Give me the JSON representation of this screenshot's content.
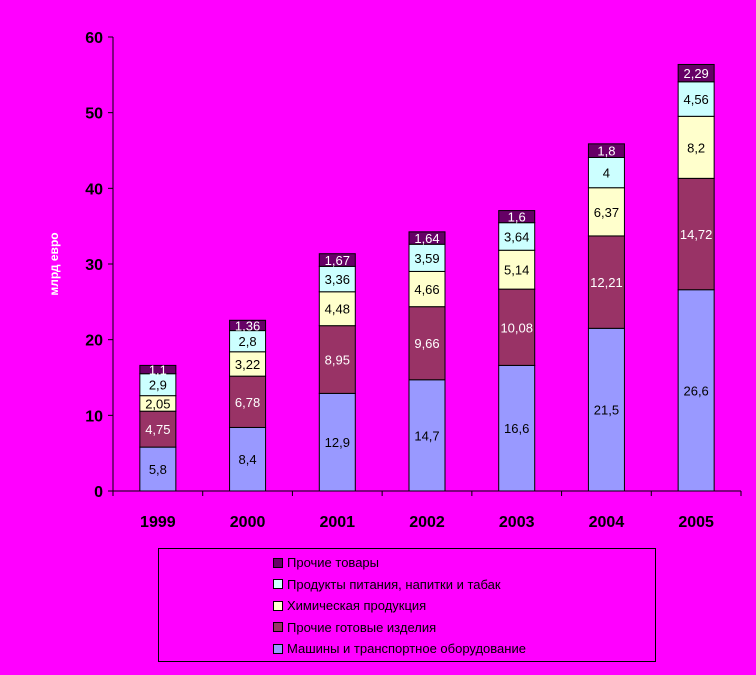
{
  "chart_data": {
    "type": "bar",
    "stacked": true,
    "ylabel": "млрд евро",
    "ylim": [
      0,
      60
    ],
    "yticks": [
      0,
      10,
      20,
      30,
      40,
      50,
      60
    ],
    "categories": [
      "1999",
      "2000",
      "2001",
      "2002",
      "2003",
      "2004",
      "2005"
    ],
    "series": [
      {
        "name": "Машины и транспортное оборудование",
        "color": "#9999ff",
        "values": [
          5.8,
          8.4,
          12.9,
          14.7,
          16.6,
          21.5,
          26.6
        ],
        "labels": [
          "5,8",
          "8,4",
          "12,9",
          "14,7",
          "16,6",
          "21,5",
          "26,6"
        ]
      },
      {
        "name": "Прочие готовые изделия",
        "color": "#993366",
        "values": [
          4.75,
          6.78,
          8.95,
          9.66,
          10.08,
          12.21,
          14.72
        ],
        "labels": [
          "4,75",
          "6,78",
          "8,95",
          "9,66",
          "10,08",
          "12,21",
          "14,72"
        ]
      },
      {
        "name": "Химическая продукция",
        "color": "#ffffcc",
        "values": [
          2.05,
          3.22,
          4.48,
          4.66,
          5.14,
          6.37,
          8.2
        ],
        "labels": [
          "2,05",
          "3,22",
          "4,48",
          "4,66",
          "5,14",
          "6,37",
          "8,2"
        ]
      },
      {
        "name": "Продукты питания, напитки и табак",
        "color": "#ccffff",
        "values": [
          2.9,
          2.8,
          3.36,
          3.59,
          3.64,
          4,
          4.56
        ],
        "labels": [
          "2,9",
          "2,8",
          "3,36",
          "3,59",
          "3,64",
          "4",
          "4,56"
        ]
      },
      {
        "name": "Прочие товары",
        "color": "#660066",
        "values": [
          1.1,
          1.36,
          1.67,
          1.64,
          1.6,
          1.8,
          2.29
        ],
        "labels": [
          "1,1",
          "1,36",
          "1,67",
          "1,64",
          "1,6",
          "1,8",
          "2,29"
        ]
      }
    ],
    "grid": false,
    "legend_position": "bottom"
  }
}
